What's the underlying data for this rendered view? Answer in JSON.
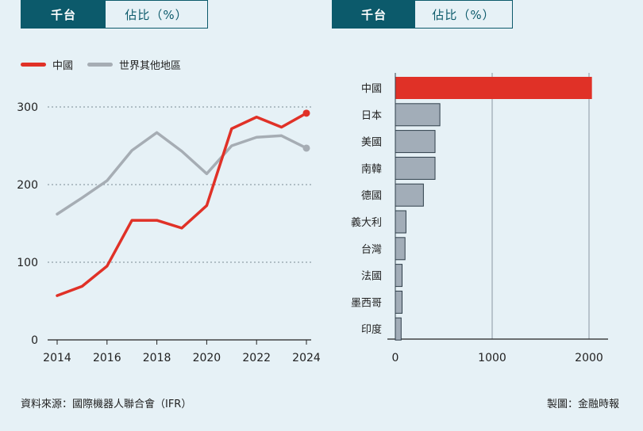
{
  "toggles": {
    "left": {
      "active": "千台",
      "inactive": "佔比（%）"
    },
    "right": {
      "active": "千台",
      "inactive": "佔比（%）"
    }
  },
  "colors": {
    "china": "#e03127",
    "rest": "#a6adb4",
    "bar_other": "#a2adb8",
    "bar_border": "#2f3e4a",
    "teal": "#0c5a6b"
  },
  "legend": [
    {
      "name": "中國",
      "color": "#e03127"
    },
    {
      "name": "世界其他地區",
      "color": "#a6adb4"
    }
  ],
  "chart_data": [
    {
      "type": "line",
      "x": [
        2014,
        2015,
        2016,
        2017,
        2018,
        2019,
        2020,
        2021,
        2022,
        2023,
        2024
      ],
      "xticks": [
        "2014",
        "2016",
        "2018",
        "2020",
        "2022",
        "2024"
      ],
      "yticks": [
        "0",
        "100",
        "200",
        "300"
      ],
      "ylim": [
        0,
        300
      ],
      "series": [
        {
          "name": "中國",
          "values": [
            57,
            69,
            95,
            154,
            154,
            144,
            173,
            272,
            287,
            274,
            292
          ]
        },
        {
          "name": "世界其他地區",
          "values": [
            162,
            183,
            205,
            244,
            267,
            243,
            214,
            250,
            261,
            263,
            247
          ]
        }
      ]
    },
    {
      "type": "bar",
      "orientation": "horizontal",
      "categories": [
        "中國",
        "日本",
        "美國",
        "南韓",
        "德國",
        "義大利",
        "台灣",
        "法國",
        "墨西哥",
        "印度"
      ],
      "values": [
        2030,
        460,
        410,
        410,
        290,
        110,
        100,
        70,
        70,
        60
      ],
      "xticks": [
        "0",
        "1000",
        "2000"
      ],
      "xlim": [
        0,
        2200
      ]
    }
  ],
  "footer": {
    "source": "資料來源：國際機器人聯合會（IFR）",
    "credit": "製圖：金融時報"
  }
}
